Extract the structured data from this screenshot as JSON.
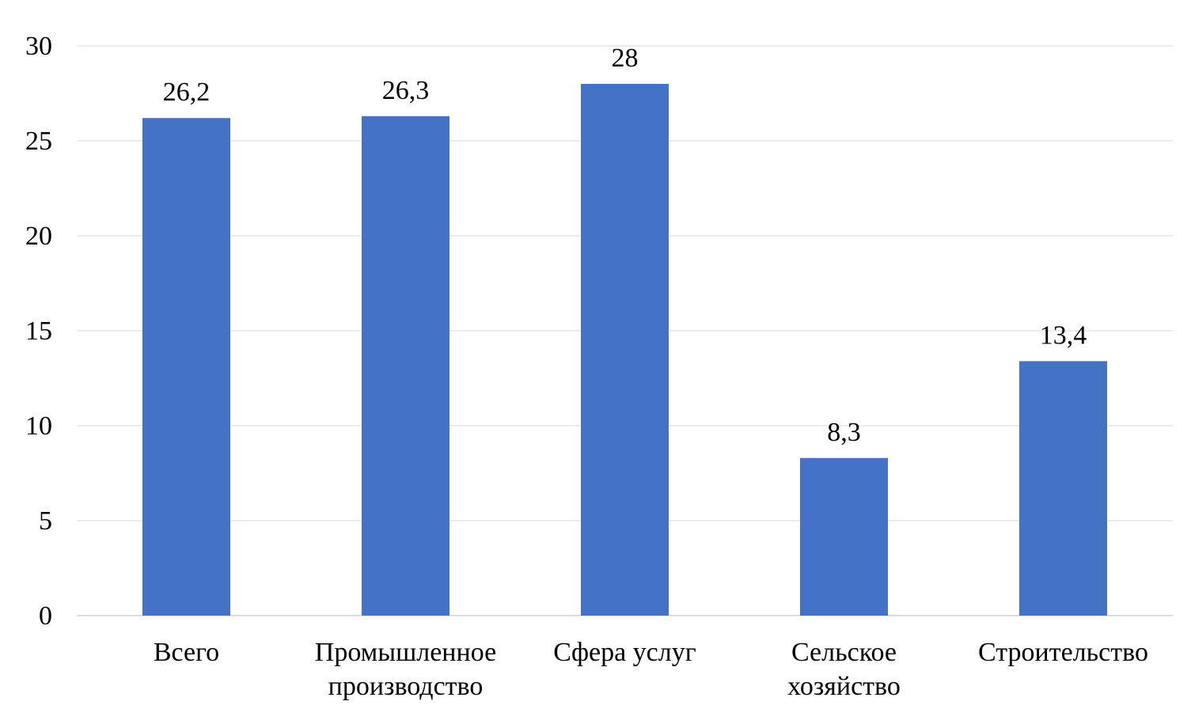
{
  "chart_data": {
    "type": "bar",
    "title": "",
    "xlabel": "",
    "ylabel": "",
    "categories": [
      [
        "Всего"
      ],
      [
        "Промышленное",
        "производство"
      ],
      [
        "Сфера услуг"
      ],
      [
        "Сельское",
        "хозяйство"
      ],
      [
        "Строительство"
      ]
    ],
    "values": [
      26.2,
      26.3,
      28,
      8.3,
      13.4
    ],
    "data_labels": [
      "26,2",
      "26,3",
      "28",
      "8,3",
      "13,4"
    ],
    "ylim": [
      0,
      30
    ],
    "yticks": [
      0,
      5,
      10,
      15,
      20,
      25,
      30
    ],
    "grid": true,
    "legend": "none",
    "bar_color": "#4472c4"
  }
}
